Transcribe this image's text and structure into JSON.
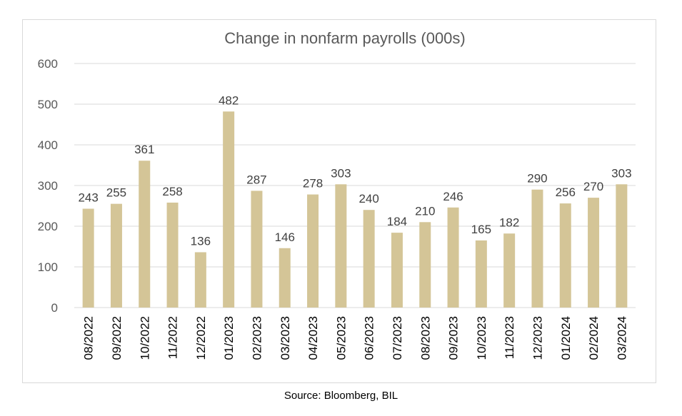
{
  "chart_data": {
    "type": "bar",
    "title": "Change in nonfarm payrolls (000s)",
    "categories": [
      "08/2022",
      "09/2022",
      "10/2022",
      "11/2022",
      "12/2022",
      "01/2023",
      "02/2023",
      "03/2023",
      "04/2023",
      "05/2023",
      "06/2023",
      "07/2023",
      "08/2023",
      "09/2023",
      "10/2023",
      "11/2023",
      "12/2023",
      "01/2024",
      "02/2024",
      "03/2024"
    ],
    "values": [
      243,
      255,
      361,
      258,
      136,
      482,
      287,
      146,
      278,
      303,
      240,
      184,
      210,
      246,
      165,
      182,
      290,
      256,
      270,
      303
    ],
    "ylim": [
      0,
      600
    ],
    "yticks": [
      0,
      100,
      200,
      300,
      400,
      500,
      600
    ],
    "grid": true,
    "legend": "none",
    "bar_color": "#d4c597",
    "grid_color": "#d9d9d9"
  },
  "source": "Source: Bloomberg, BIL"
}
